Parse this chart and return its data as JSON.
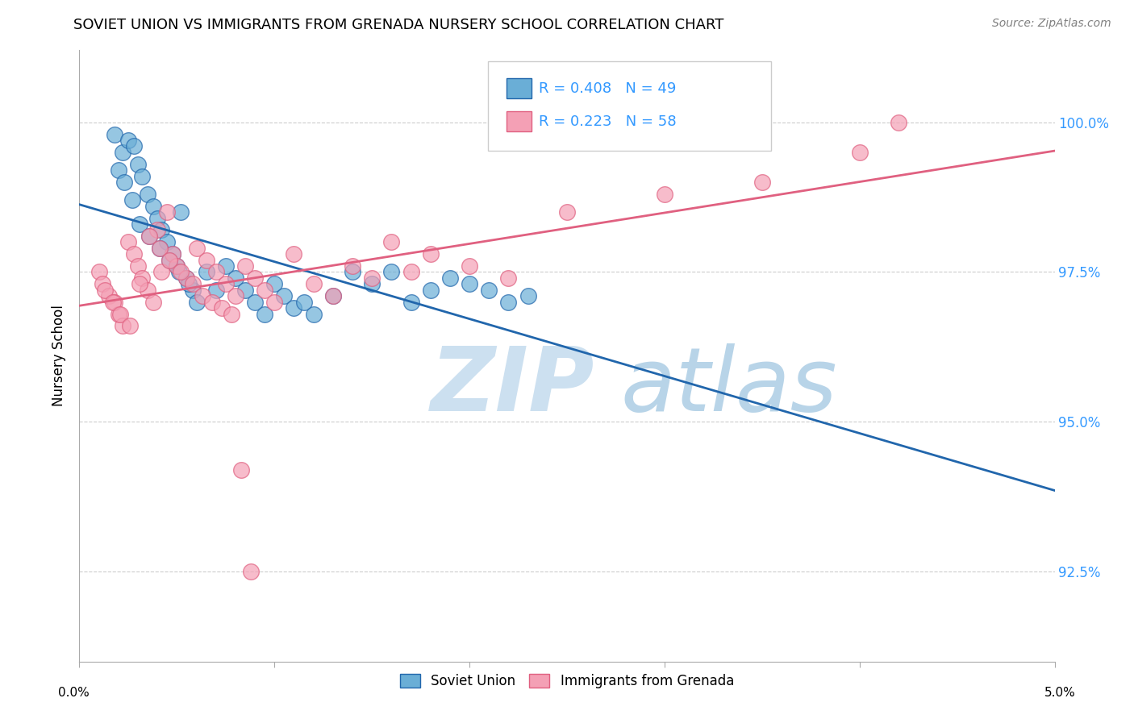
{
  "title": "SOVIET UNION VS IMMIGRANTS FROM GRENADA NURSERY SCHOOL CORRELATION CHART",
  "source": "Source: ZipAtlas.com",
  "ylabel": "Nursery School",
  "ytick_values": [
    92.5,
    95.0,
    97.5,
    100.0
  ],
  "xlim": [
    0.0,
    5.0
  ],
  "ylim": [
    91.0,
    101.2
  ],
  "legend_blue_R": "R = 0.408",
  "legend_blue_N": "N = 49",
  "legend_pink_R": "R = 0.223",
  "legend_pink_N": "N = 58",
  "legend_label_blue": "Soviet Union",
  "legend_label_pink": "Immigrants from Grenada",
  "color_blue": "#6aaed6",
  "color_pink": "#f4a0b5",
  "color_blue_line": "#2166ac",
  "color_pink_line": "#e06080",
  "color_text_blue": "#3399ff",
  "watermark_color_zip": "#cce0f0",
  "watermark_color_atlas": "#b8d4e8",
  "background_color": "#ffffff",
  "soviet_union_x": [
    0.18,
    0.22,
    0.25,
    0.28,
    0.3,
    0.32,
    0.35,
    0.38,
    0.4,
    0.42,
    0.45,
    0.48,
    0.5,
    0.52,
    0.55,
    0.58,
    0.6,
    0.65,
    0.7,
    0.75,
    0.8,
    0.85,
    0.9,
    0.95,
    1.0,
    1.05,
    1.1,
    1.15,
    1.2,
    1.3,
    1.4,
    1.5,
    1.6,
    1.7,
    1.8,
    1.9,
    2.0,
    2.1,
    2.2,
    2.3,
    0.2,
    0.23,
    0.27,
    0.31,
    0.36,
    0.41,
    0.46,
    0.51,
    0.56
  ],
  "soviet_union_y": [
    99.8,
    99.5,
    99.7,
    99.6,
    99.3,
    99.1,
    98.8,
    98.6,
    98.4,
    98.2,
    98.0,
    97.8,
    97.6,
    98.5,
    97.4,
    97.2,
    97.0,
    97.5,
    97.2,
    97.6,
    97.4,
    97.2,
    97.0,
    96.8,
    97.3,
    97.1,
    96.9,
    97.0,
    96.8,
    97.1,
    97.5,
    97.3,
    97.5,
    97.0,
    97.2,
    97.4,
    97.3,
    97.2,
    97.0,
    97.1,
    99.2,
    99.0,
    98.7,
    98.3,
    98.1,
    97.9,
    97.7,
    97.5,
    97.3
  ],
  "grenada_x": [
    0.1,
    0.12,
    0.15,
    0.18,
    0.2,
    0.22,
    0.25,
    0.28,
    0.3,
    0.32,
    0.35,
    0.38,
    0.4,
    0.42,
    0.45,
    0.48,
    0.5,
    0.55,
    0.6,
    0.65,
    0.7,
    0.75,
    0.8,
    0.85,
    0.9,
    0.95,
    1.0,
    1.1,
    1.2,
    1.3,
    1.4,
    1.5,
    1.6,
    1.7,
    1.8,
    2.0,
    2.2,
    2.5,
    3.0,
    3.5,
    4.0,
    4.2,
    0.13,
    0.17,
    0.21,
    0.26,
    0.31,
    0.36,
    0.41,
    0.46,
    0.52,
    0.58,
    0.63,
    0.68,
    0.73,
    0.78,
    0.83,
    0.88
  ],
  "grenada_y": [
    97.5,
    97.3,
    97.1,
    97.0,
    96.8,
    96.6,
    98.0,
    97.8,
    97.6,
    97.4,
    97.2,
    97.0,
    98.2,
    97.5,
    98.5,
    97.8,
    97.6,
    97.4,
    97.9,
    97.7,
    97.5,
    97.3,
    97.1,
    97.6,
    97.4,
    97.2,
    97.0,
    97.8,
    97.3,
    97.1,
    97.6,
    97.4,
    98.0,
    97.5,
    97.8,
    97.6,
    97.4,
    98.5,
    98.8,
    99.0,
    99.5,
    100.0,
    97.2,
    97.0,
    96.8,
    96.6,
    97.3,
    98.1,
    97.9,
    97.7,
    97.5,
    97.3,
    97.1,
    97.0,
    96.9,
    96.8,
    94.2,
    92.5
  ]
}
